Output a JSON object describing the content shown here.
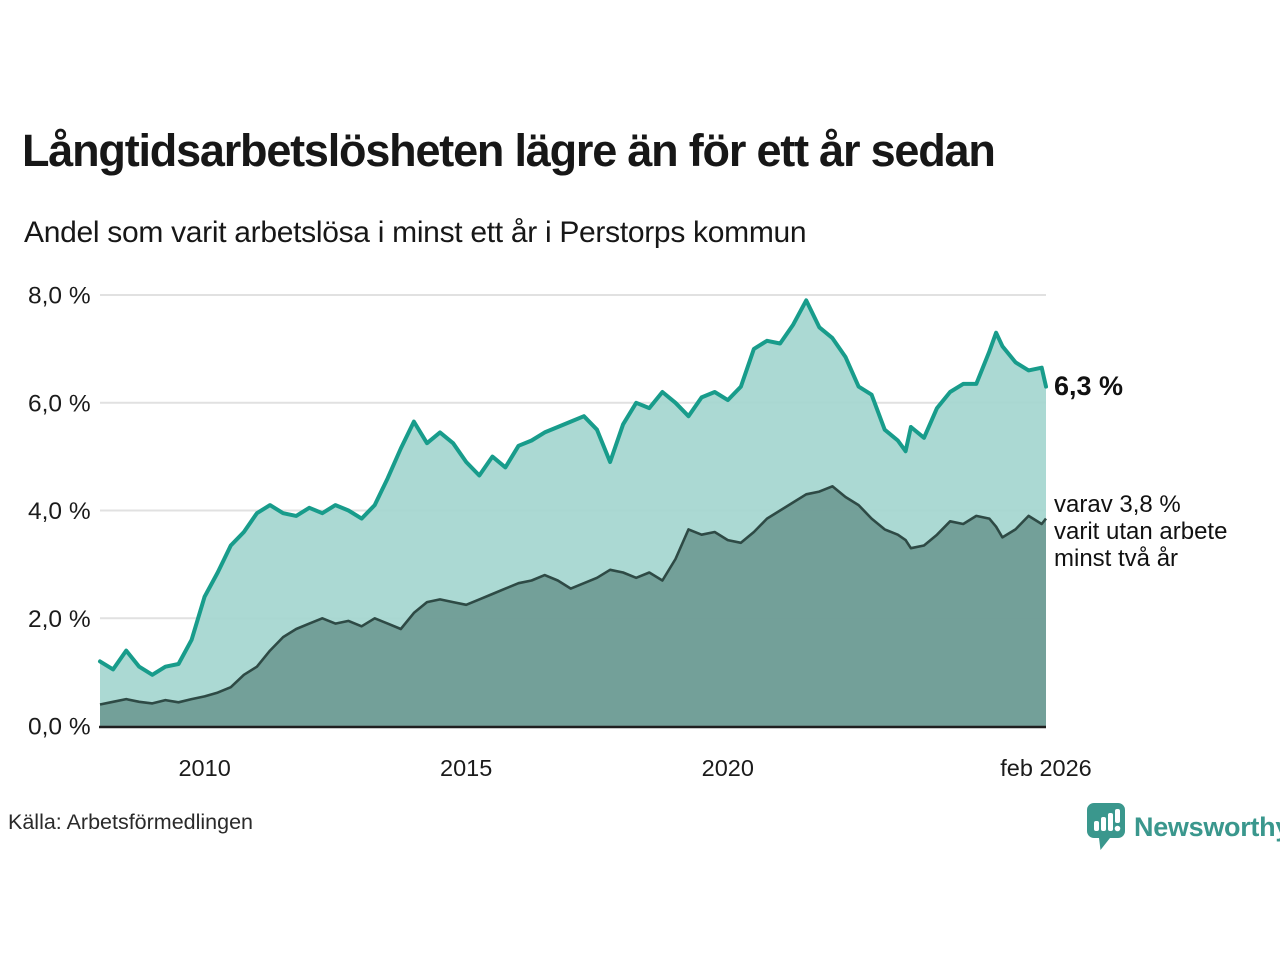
{
  "header": {
    "title": "Långtidsarbetslösheten lägre än för ett år sedan",
    "subtitle": "Andel som varit arbetslösa i minst ett år i Perstorps kommun"
  },
  "annotations": {
    "latest_total": "6,3 %",
    "latest_two_years_lines": [
      "varav 3,8 %",
      "varit utan arbete",
      "minst två år"
    ]
  },
  "footer": {
    "source": "Källa: Arbetsförmedlingen",
    "brand_name": "Newsworthy"
  },
  "colors": {
    "upper_fill": "#a5d6d0",
    "upper_stroke": "#189c8b",
    "lower_fill": "#6f9b94",
    "lower_stroke": "#2e4a45",
    "gridline": "rgba(40,40,40,0.14)",
    "baseline": "#1f1f1f",
    "brand": "#3a978d",
    "text": "#171717"
  },
  "chart_data": {
    "type": "area",
    "title": "Långtidsarbetslösheten lägre än för ett år sedan",
    "subtitle": "Andel som varit arbetslösa i minst ett år i Perstorps kommun",
    "unit": "%",
    "grid": true,
    "xlim": [
      2008.0,
      2026.083
    ],
    "ylim": [
      0,
      8
    ],
    "y_ticks": [
      8,
      6,
      4,
      2,
      0
    ],
    "y_tick_labels": [
      "8,0 %",
      "6,0 %",
      "4,0 %",
      "2,0 %",
      "0,0 %"
    ],
    "x_tick_years": [
      2010,
      2015,
      2020,
      2026.083
    ],
    "x_tick_labels": [
      "2010",
      "2015",
      "2020",
      "feb 2026"
    ],
    "t": [
      2008.0,
      2008.25,
      2008.5,
      2008.75,
      2009.0,
      2009.25,
      2009.5,
      2009.75,
      2010.0,
      2010.25,
      2010.5,
      2010.75,
      2011.0,
      2011.25,
      2011.5,
      2011.75,
      2012.0,
      2012.25,
      2012.5,
      2012.75,
      2013.0,
      2013.25,
      2013.5,
      2013.75,
      2014.0,
      2014.25,
      2014.5,
      2014.75,
      2015.0,
      2015.25,
      2015.5,
      2015.75,
      2016.0,
      2016.25,
      2016.5,
      2016.75,
      2017.0,
      2017.25,
      2017.5,
      2017.75,
      2018.0,
      2018.25,
      2018.5,
      2018.75,
      2019.0,
      2019.25,
      2019.5,
      2019.75,
      2020.0,
      2020.25,
      2020.5,
      2020.75,
      2021.0,
      2021.25,
      2021.5,
      2021.75,
      2022.0,
      2022.25,
      2022.5,
      2022.75,
      2023.0,
      2023.25,
      2023.4,
      2023.5,
      2023.75,
      2024.0,
      2024.25,
      2024.5,
      2024.75,
      2025.0,
      2025.13,
      2025.25,
      2025.5,
      2025.75,
      2026.0,
      2026.083
    ],
    "series": [
      {
        "name": "Arbetslösa minst ett år",
        "latest_label": "6,3 %",
        "latest_value": 6.3,
        "values": [
          1.2,
          1.05,
          1.4,
          1.1,
          0.95,
          1.1,
          1.15,
          1.6,
          2.4,
          2.85,
          3.35,
          3.6,
          3.95,
          4.1,
          3.95,
          3.9,
          4.05,
          3.95,
          4.1,
          4.0,
          3.85,
          4.1,
          4.6,
          5.15,
          5.65,
          5.25,
          5.45,
          5.25,
          4.9,
          4.65,
          5.0,
          4.8,
          5.2,
          5.3,
          5.45,
          5.55,
          5.65,
          5.75,
          5.5,
          4.9,
          5.6,
          6.0,
          5.9,
          6.2,
          6.0,
          5.75,
          6.1,
          6.2,
          6.05,
          6.3,
          7.0,
          7.15,
          7.1,
          7.45,
          7.9,
          7.4,
          7.2,
          6.85,
          6.3,
          6.15,
          5.5,
          5.3,
          5.1,
          5.55,
          5.35,
          5.9,
          6.2,
          6.35,
          6.35,
          6.95,
          7.3,
          7.05,
          6.75,
          6.6,
          6.65,
          6.3
        ]
      },
      {
        "name": "Varit utan arbete minst två år",
        "latest_label": "varav 3,8 %",
        "latest_value": 3.8,
        "values": [
          0.4,
          0.45,
          0.5,
          0.45,
          0.42,
          0.48,
          0.44,
          0.5,
          0.55,
          0.62,
          0.72,
          0.95,
          1.1,
          1.4,
          1.65,
          1.8,
          1.9,
          2.0,
          1.9,
          1.95,
          1.85,
          2.0,
          1.9,
          1.8,
          2.1,
          2.3,
          2.35,
          2.3,
          2.25,
          2.35,
          2.45,
          2.55,
          2.65,
          2.7,
          2.8,
          2.7,
          2.55,
          2.65,
          2.75,
          2.9,
          2.85,
          2.75,
          2.85,
          2.7,
          3.1,
          3.65,
          3.55,
          3.6,
          3.45,
          3.4,
          3.6,
          3.85,
          4.0,
          4.15,
          4.3,
          4.35,
          4.45,
          4.25,
          4.1,
          3.85,
          3.65,
          3.55,
          3.45,
          3.3,
          3.35,
          3.55,
          3.8,
          3.75,
          3.9,
          3.85,
          3.7,
          3.5,
          3.65,
          3.9,
          3.75,
          3.85
        ]
      }
    ]
  }
}
